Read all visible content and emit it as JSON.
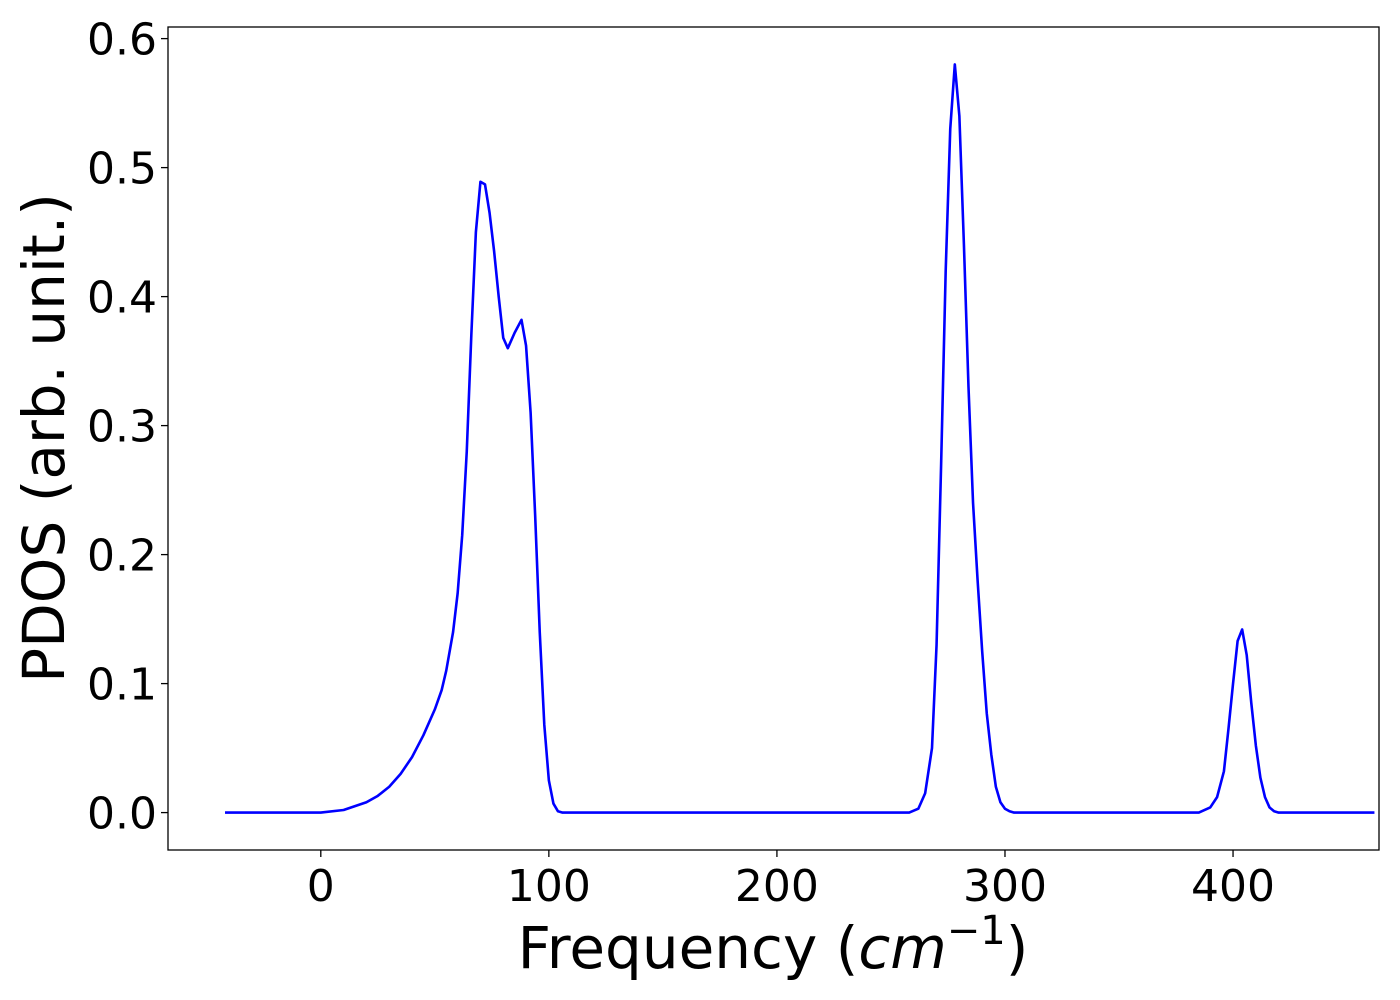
{
  "chart_data": {
    "type": "line",
    "title": "",
    "xlabel": "Frequency (cm⁻¹)",
    "xlabel_parts": {
      "prefix": "Frequency (",
      "italic": "cm",
      "superscript": "−1",
      "suffix": ")"
    },
    "ylabel": "PDOS (arb. unit.)",
    "xlim": [
      -67,
      464
    ],
    "ylim": [
      -0.029,
      0.609
    ],
    "xticks": [
      0,
      100,
      200,
      300,
      400
    ],
    "xtick_labels": [
      "0",
      "100",
      "200",
      "300",
      "400"
    ],
    "yticks": [
      0.0,
      0.1,
      0.2,
      0.3,
      0.4,
      0.5,
      0.6
    ],
    "ytick_labels": [
      "0.0",
      "0.1",
      "0.2",
      "0.3",
      "0.4",
      "0.5",
      "0.6"
    ],
    "grid": false,
    "legend": null,
    "series": [
      {
        "color": "#0000ff",
        "x": [
          -42,
          -20,
          0,
          10,
          20,
          25,
          30,
          35,
          40,
          45,
          50,
          53,
          55,
          58,
          60,
          62,
          64,
          66,
          68,
          70,
          72,
          74,
          76,
          78,
          80,
          82,
          85,
          88,
          90,
          92,
          94,
          96,
          98,
          100,
          102,
          104,
          106,
          108,
          110,
          112,
          115,
          120,
          150,
          200,
          250,
          258,
          262,
          265,
          268,
          270,
          272,
          274,
          276,
          278,
          280,
          282,
          284,
          286,
          288,
          290,
          292,
          294,
          296,
          298,
          300,
          302,
          304,
          306,
          308,
          310,
          315,
          350,
          385,
          390,
          393,
          396,
          398,
          400,
          402,
          404,
          406,
          408,
          410,
          412,
          414,
          416,
          418,
          420,
          422,
          424,
          426,
          428,
          432,
          440,
          462
        ],
        "y": [
          0.0,
          0.0,
          0.0,
          0.002,
          0.008,
          0.013,
          0.02,
          0.03,
          0.043,
          0.06,
          0.08,
          0.095,
          0.11,
          0.14,
          0.17,
          0.215,
          0.28,
          0.37,
          0.45,
          0.489,
          0.487,
          0.465,
          0.435,
          0.4,
          0.368,
          0.36,
          0.372,
          0.382,
          0.362,
          0.31,
          0.23,
          0.14,
          0.068,
          0.025,
          0.007,
          0.001,
          0.0,
          0.0,
          0.0,
          0.0,
          0.0,
          0.0,
          0.0,
          0.0,
          0.0,
          0.0,
          0.003,
          0.015,
          0.05,
          0.13,
          0.27,
          0.42,
          0.53,
          0.58,
          0.54,
          0.44,
          0.33,
          0.24,
          0.18,
          0.125,
          0.077,
          0.045,
          0.02,
          0.008,
          0.003,
          0.001,
          0.0,
          0.0,
          0.0,
          0.0,
          0.0,
          0.0,
          0.0,
          0.004,
          0.012,
          0.032,
          0.065,
          0.1,
          0.133,
          0.142,
          0.122,
          0.085,
          0.052,
          0.027,
          0.012,
          0.004,
          0.001,
          0.0,
          0.0,
          0.0,
          0.0,
          0.0,
          0.0,
          0.0,
          0.0
        ]
      }
    ]
  }
}
